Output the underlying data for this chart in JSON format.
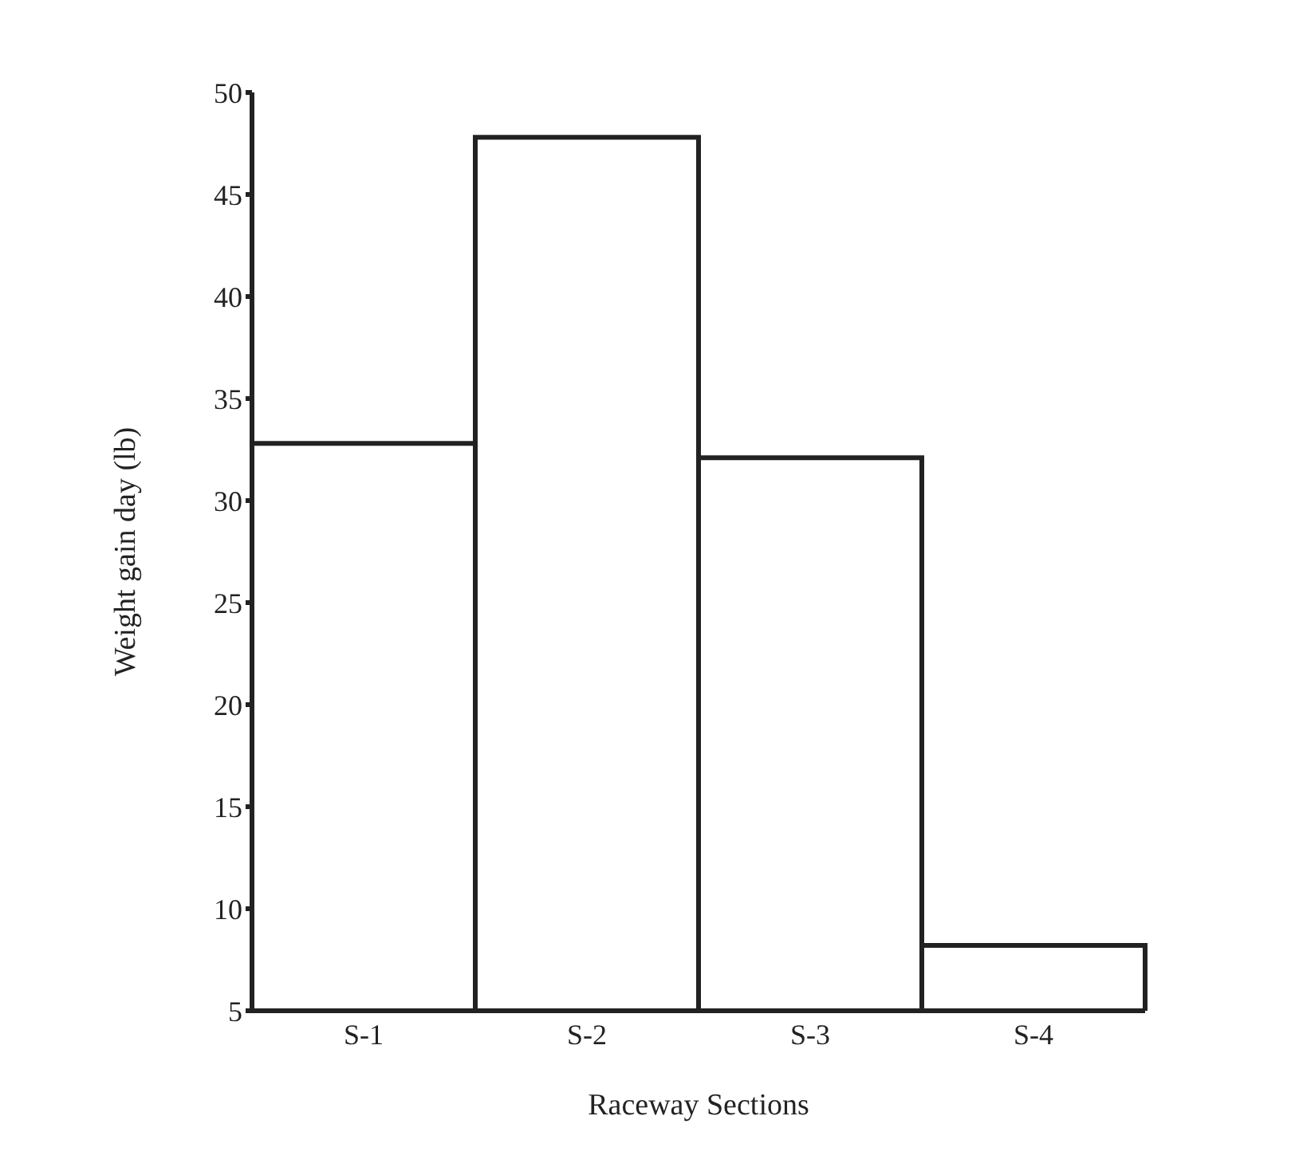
{
  "chart_data": {
    "type": "bar",
    "xlabel": "Raceway Sections",
    "ylabel": "Weight gain day (lb)",
    "categories": [
      "S-1",
      "S-2",
      "S-3",
      "S-4"
    ],
    "values": [
      32.8,
      47.8,
      32.1,
      8.2
    ],
    "color": "#ffffff",
    "ylim": [
      5,
      50
    ],
    "yticks": [
      5,
      10,
      15,
      20,
      25,
      30,
      35,
      40,
      45,
      50
    ],
    "grid": false,
    "legend": false
  }
}
